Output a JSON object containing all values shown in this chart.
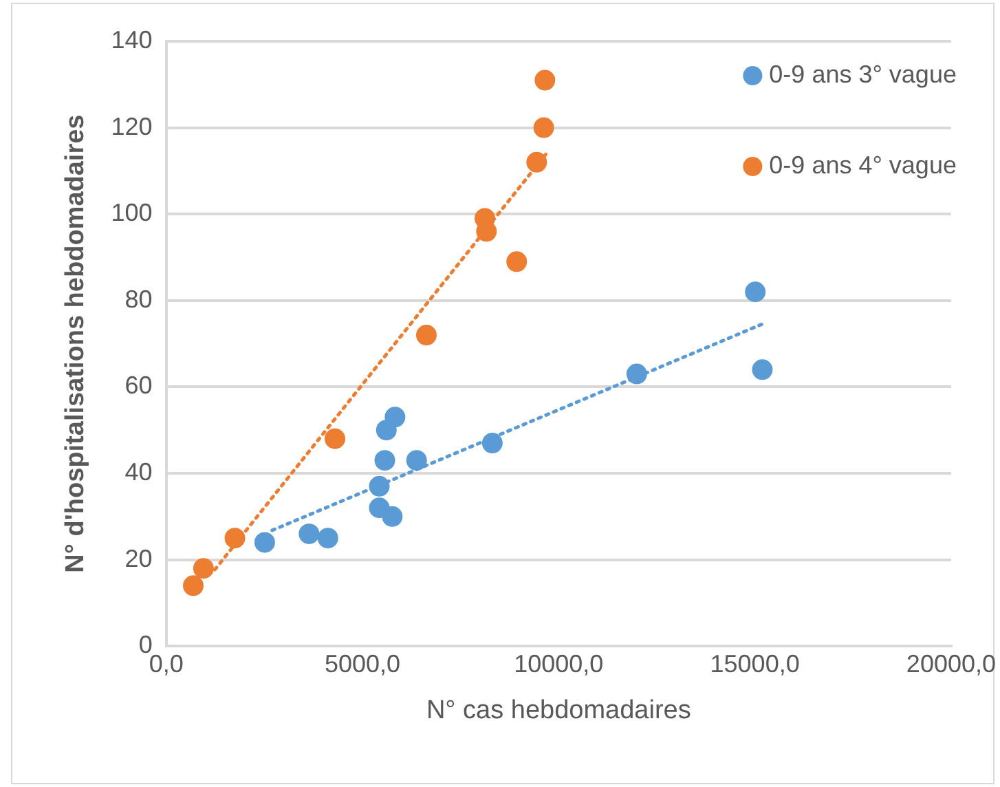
{
  "chart_data": {
    "type": "scatter",
    "xlabel": "N° cas hebdomadaires",
    "ylabel": "N° d'hospitalisations hebdomadaires",
    "xlim": [
      0,
      20000
    ],
    "xticks": [
      {
        "value": 0,
        "label": "0,0"
      },
      {
        "value": 5000,
        "label": "5000,0"
      },
      {
        "value": 10000,
        "label": "10000,0"
      },
      {
        "value": 15000,
        "label": "15000,0"
      },
      {
        "value": 20000,
        "label": "20000,0"
      }
    ],
    "ylim": [
      0,
      140
    ],
    "yticks": [
      0,
      20,
      40,
      60,
      80,
      100,
      120,
      140
    ],
    "grid": "y",
    "legend": "top right",
    "marker": "circle",
    "series": [
      {
        "name": "0-9 ans 3° vague",
        "color": "#5b9bd5",
        "x": [
          2510,
          3640,
          4120,
          5430,
          5430,
          5570,
          5610,
          5830,
          5760,
          6380,
          8310,
          11990,
          15010,
          15190
        ],
        "values": [
          24,
          26,
          25,
          37,
          32,
          43,
          50,
          53,
          30,
          43,
          47,
          63,
          82,
          64
        ]
      },
      {
        "name": "0-9 ans 4° vague",
        "color": "#ed7d31",
        "x": [
          690,
          950,
          1750,
          4300,
          6630,
          8120,
          8160,
          8930,
          9440,
          9620,
          9650
        ],
        "values": [
          14,
          18,
          25,
          48,
          72,
          99,
          96,
          89,
          112,
          120,
          131
        ]
      },
      {
        "type": "line",
        "color": "#5b9bd5",
        "line_style": "dotted",
        "marker": "none",
        "x": [
          2700,
          15230
        ],
        "values": [
          26.8,
          74.7
        ]
      },
      {
        "type": "line",
        "color": "#ed7d31",
        "line_style": "dotted",
        "marker": "none",
        "x": [
          1240,
          9730
        ],
        "values": [
          17.7,
          114.5
        ]
      }
    ]
  }
}
